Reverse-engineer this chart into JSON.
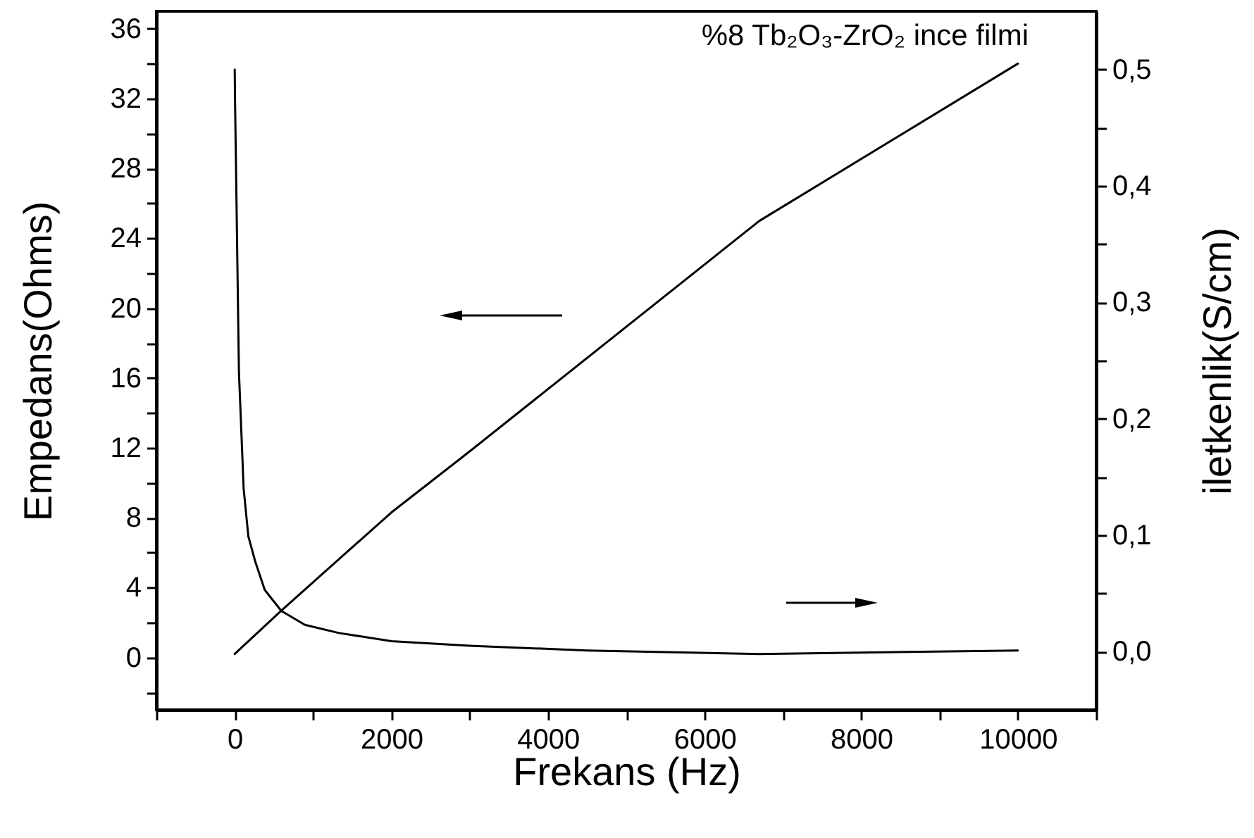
{
  "chart_data": {
    "type": "line",
    "xlabel": "Frekans (Hz)",
    "ylabel": "Empedans(Ohms)",
    "y2label": "iletkenlik(S/cm)",
    "annotations": [
      "%8 Tb₂O₃-ZrO₂ ince filmi"
    ],
    "series": [
      {
        "color": "#000000",
        "x": [
          0,
          600,
          1000,
          2000,
          3000,
          6700,
          10000
        ],
        "values": [
          0.2,
          2.7,
          4.3,
          8.3,
          11.8,
          25,
          34
        ]
      },
      {
        "color": "#000000",
        "axis": "y2",
        "x": [
          0,
          5,
          54,
          114,
          174,
          264,
          384,
          595,
          895,
          1330,
          2000,
          3000,
          4500,
          6700,
          10000
        ],
        "values": [
          0.5,
          0.47,
          0.24,
          0.14,
          0.099,
          0.077,
          0.053,
          0.035,
          0.023,
          0.016,
          0.009,
          0.005,
          0.001,
          -0.002,
          0.001
        ]
      }
    ],
    "xlim": [
      -1000,
      11000
    ],
    "xticks": [
      {
        "value": -1000,
        "label": null
      },
      0,
      {
        "value": 1000,
        "label": null
      },
      2000,
      {
        "value": 3000,
        "label": null
      },
      4000,
      {
        "value": 5000,
        "label": null
      },
      6000,
      {
        "value": 7000,
        "label": null
      },
      8000,
      {
        "value": 9000,
        "label": null
      },
      10000,
      {
        "value": 11000,
        "label": null
      }
    ],
    "ylim": [
      -3,
      37
    ],
    "yticks": [
      {
        "value": -2,
        "label": null
      },
      0,
      {
        "value": 2,
        "label": null
      },
      4,
      {
        "value": 6,
        "label": null
      },
      8,
      {
        "value": 10,
        "label": null
      },
      12,
      {
        "value": 14,
        "label": null
      },
      16,
      {
        "value": 18,
        "label": null
      },
      20,
      {
        "value": 22,
        "label": null
      },
      24,
      {
        "value": 26,
        "label": null
      },
      28,
      {
        "value": 30,
        "label": null
      },
      32,
      {
        "value": 34,
        "label": null
      },
      36
    ],
    "y2lim": [
      -0.05,
      0.55
    ],
    "y2ticks": [
      {
        "value": 0,
        "label": "0,0"
      },
      {
        "value": 0.05,
        "label": null
      },
      {
        "value": 0.1,
        "label": "0,1"
      },
      {
        "value": 0.15,
        "label": null
      },
      {
        "value": 0.2,
        "label": "0,2"
      },
      {
        "value": 0.25,
        "label": null
      },
      {
        "value": 0.3,
        "label": "0,3"
      },
      {
        "value": 0.35,
        "label": null
      },
      {
        "value": 0.4,
        "label": "0,4"
      },
      {
        "value": 0.45,
        "label": null
      },
      {
        "value": 0.5,
        "label": "0,5"
      }
    ],
    "marker": "none",
    "line_style": "solid"
  }
}
